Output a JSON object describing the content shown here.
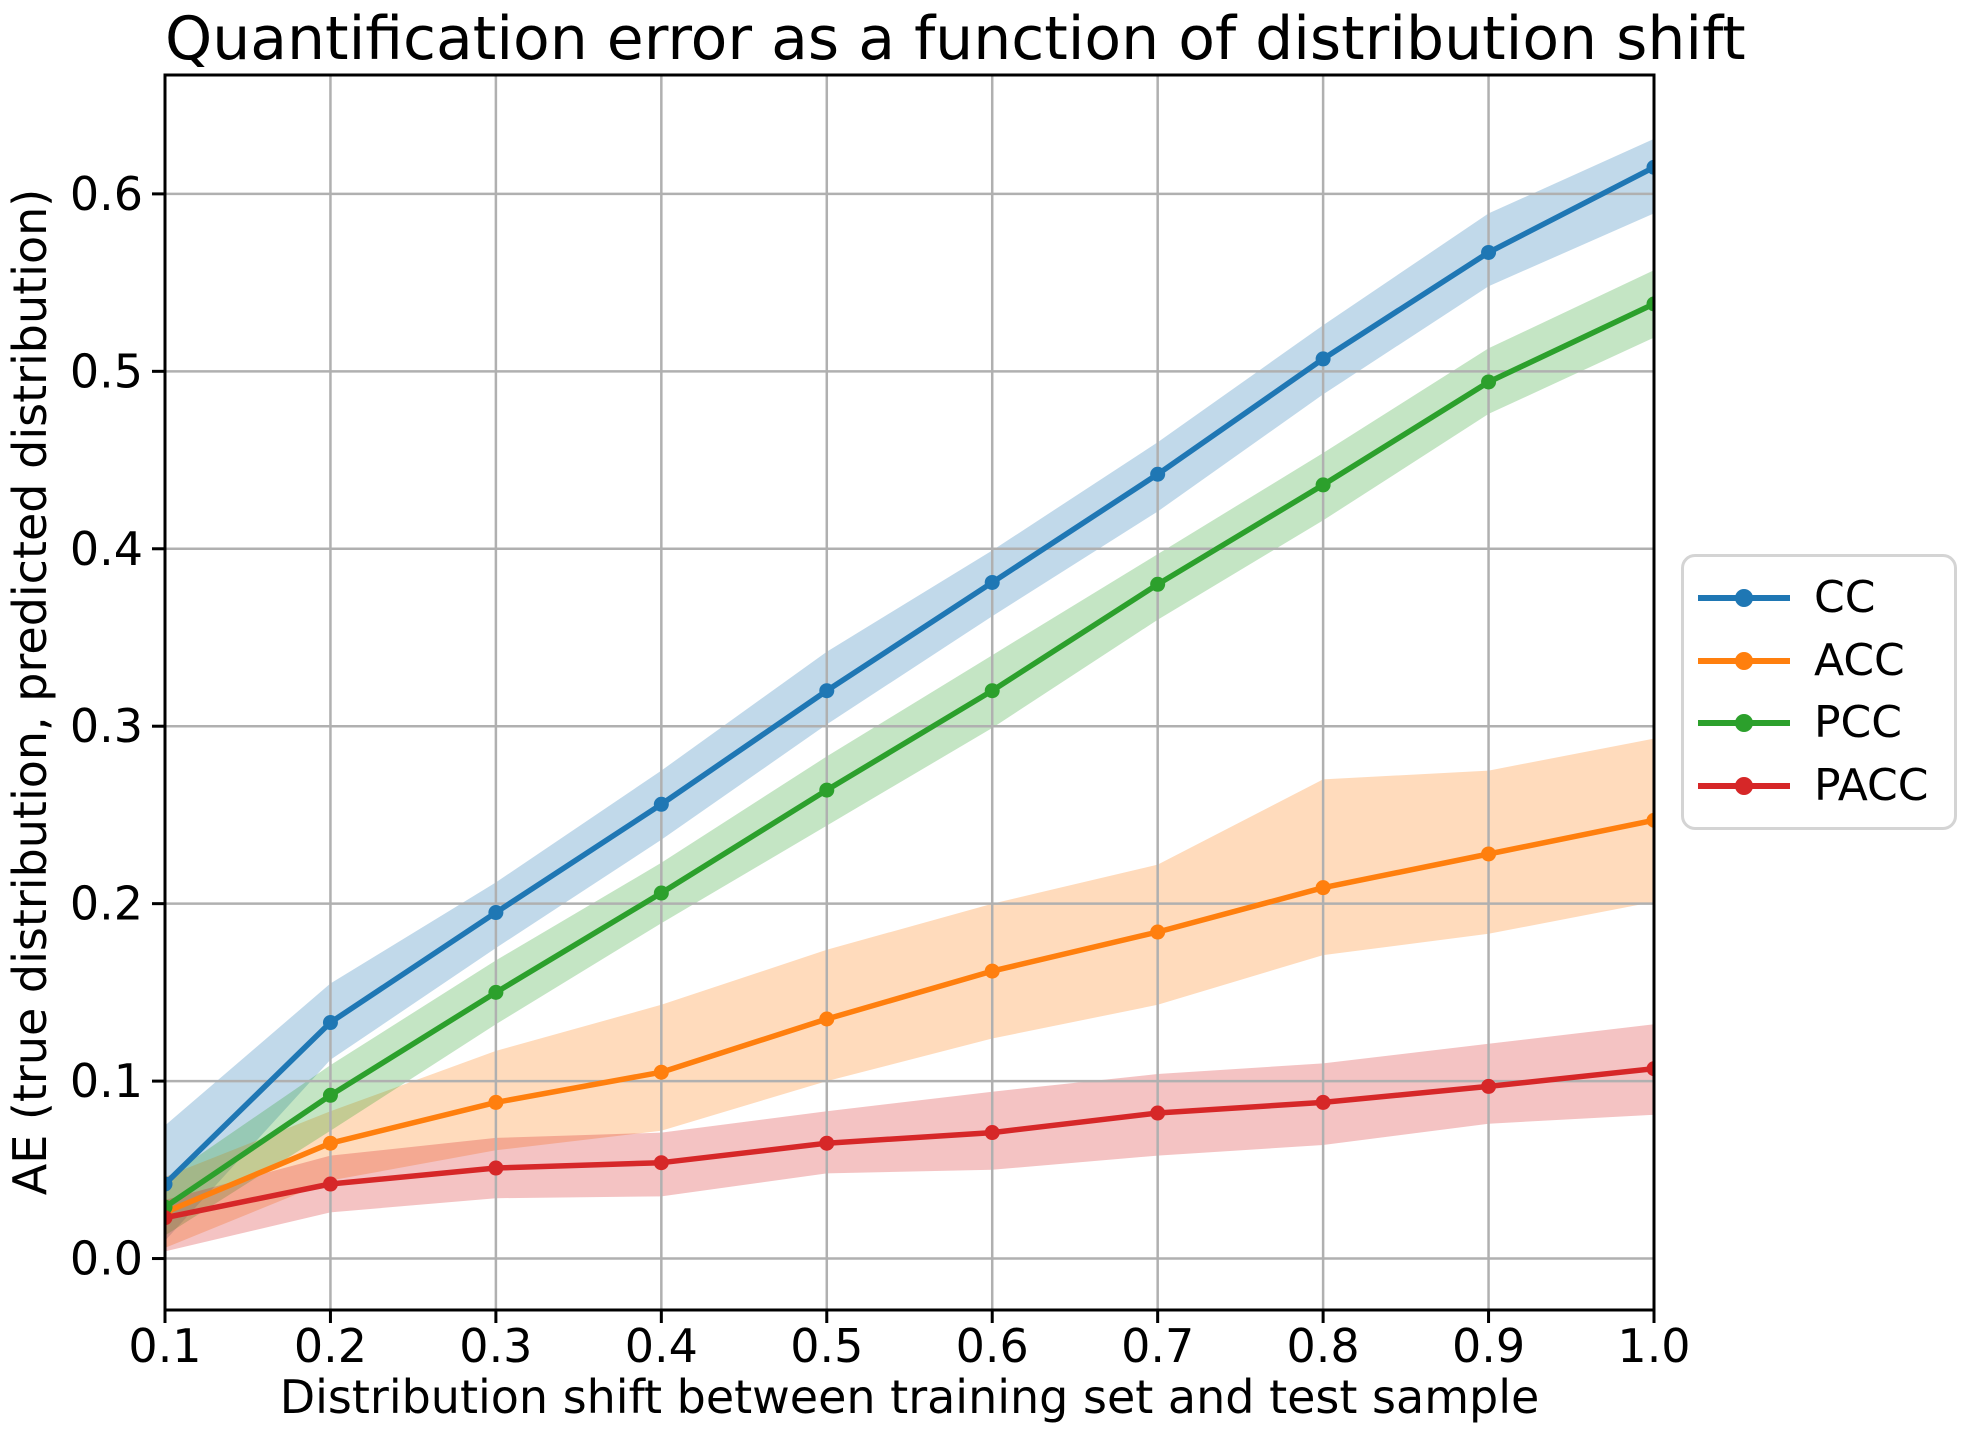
{
  "title": "Quantification error as a function of distribution shift",
  "chart_data": {
    "type": "line",
    "title": "Quantification error as a function of distribution shift",
    "xlabel": "Distribution shift between training set and test sample",
    "ylabel": "AE (true distribution, predicted distribution)",
    "x": [
      0.1,
      0.2,
      0.3,
      0.4,
      0.5,
      0.6,
      0.7,
      0.8,
      0.9,
      1.0
    ],
    "xticks": [
      "0.1",
      "0.2",
      "0.3",
      "0.4",
      "0.5",
      "0.6",
      "0.7",
      "0.8",
      "0.9",
      "1.0"
    ],
    "yticks": [
      "0.0",
      "0.1",
      "0.2",
      "0.3",
      "0.4",
      "0.5",
      "0.6"
    ],
    "ytick_values": [
      0.0,
      0.1,
      0.2,
      0.3,
      0.4,
      0.5,
      0.6
    ],
    "xlim": [
      0.1,
      1.0
    ],
    "ylim": [
      -0.029,
      0.667
    ],
    "grid": true,
    "grid_color": "#b0b0b0",
    "legend_position": "outside-right",
    "band_opacity": 0.28,
    "series": [
      {
        "name": "CC",
        "color": "#1f77b4",
        "values": [
          0.042,
          0.133,
          0.195,
          0.256,
          0.32,
          0.381,
          0.442,
          0.507,
          0.567,
          0.615
        ],
        "band_lower": [
          0.01,
          0.112,
          0.175,
          0.236,
          0.301,
          0.362,
          0.421,
          0.487,
          0.548,
          0.589
        ],
        "band_upper": [
          0.075,
          0.155,
          0.212,
          0.275,
          0.342,
          0.399,
          0.46,
          0.526,
          0.589,
          0.631
        ]
      },
      {
        "name": "ACC",
        "color": "#ff7f0e",
        "values": [
          0.026,
          0.065,
          0.088,
          0.105,
          0.135,
          0.162,
          0.184,
          0.209,
          0.228,
          0.247
        ],
        "band_lower": [
          0.006,
          0.044,
          0.061,
          0.072,
          0.1,
          0.124,
          0.143,
          0.171,
          0.183,
          0.201
        ],
        "band_upper": [
          0.046,
          0.083,
          0.117,
          0.143,
          0.174,
          0.2,
          0.222,
          0.27,
          0.275,
          0.293
        ]
      },
      {
        "name": "PCC",
        "color": "#2ca02c",
        "values": [
          0.029,
          0.092,
          0.15,
          0.206,
          0.264,
          0.32,
          0.38,
          0.436,
          0.494,
          0.538
        ],
        "band_lower": [
          0.013,
          0.072,
          0.132,
          0.189,
          0.244,
          0.299,
          0.36,
          0.416,
          0.476,
          0.519
        ],
        "band_upper": [
          0.045,
          0.109,
          0.168,
          0.223,
          0.283,
          0.34,
          0.397,
          0.454,
          0.513,
          0.557
        ]
      },
      {
        "name": "PACC",
        "color": "#d62728",
        "values": [
          0.023,
          0.042,
          0.051,
          0.054,
          0.065,
          0.071,
          0.082,
          0.088,
          0.097,
          0.107
        ],
        "band_lower": [
          0.004,
          0.026,
          0.034,
          0.035,
          0.048,
          0.05,
          0.058,
          0.064,
          0.076,
          0.081
        ],
        "band_upper": [
          0.033,
          0.058,
          0.068,
          0.071,
          0.083,
          0.094,
          0.104,
          0.11,
          0.121,
          0.132
        ]
      }
    ]
  }
}
